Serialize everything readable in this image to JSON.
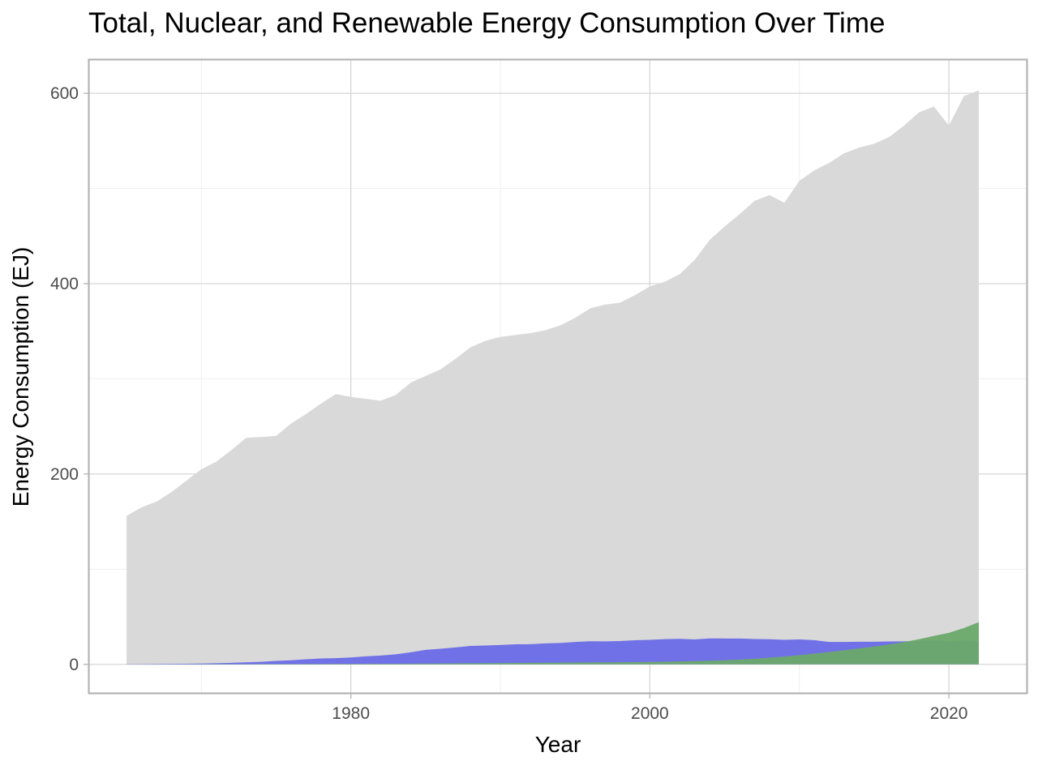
{
  "chart_data": {
    "type": "area",
    "title": "Total, Nuclear, and Renewable Energy Consumption Over Time",
    "xlabel": "Year",
    "ylabel": "Energy Consumption (EJ)",
    "xlim": [
      1962.5,
      2025.2
    ],
    "ylim": [
      -30,
      635
    ],
    "x_ticks": [
      1980,
      2000,
      2020
    ],
    "y_ticks": [
      0,
      200,
      400,
      600
    ],
    "grid": true,
    "legend": "none",
    "x": [
      1965,
      1966,
      1967,
      1968,
      1969,
      1970,
      1971,
      1972,
      1973,
      1974,
      1975,
      1976,
      1977,
      1978,
      1979,
      1980,
      1981,
      1982,
      1983,
      1984,
      1985,
      1986,
      1987,
      1988,
      1989,
      1990,
      1991,
      1992,
      1993,
      1994,
      1995,
      1996,
      1997,
      1998,
      1999,
      2000,
      2001,
      2002,
      2003,
      2004,
      2005,
      2006,
      2007,
      2008,
      2009,
      2010,
      2011,
      2012,
      2013,
      2014,
      2015,
      2016,
      2017,
      2018,
      2019,
      2020,
      2021,
      2022
    ],
    "series": [
      {
        "color": "#d9d9d9",
        "values": [
          156,
          165,
          171,
          181,
          193,
          205,
          213,
          225,
          238,
          239,
          240,
          253,
          263,
          274,
          284,
          281,
          279,
          277,
          283,
          296,
          303,
          310,
          321,
          333,
          340,
          344,
          346,
          348,
          351,
          356,
          364,
          374,
          378,
          380,
          388,
          397,
          402,
          410,
          425,
          446,
          460,
          473,
          487,
          493,
          485,
          508,
          519,
          527,
          537,
          543,
          547,
          554,
          566,
          580,
          586,
          566,
          597,
          603
        ]
      },
      {
        "color": "#6b6be8",
        "values": [
          0.2,
          0.3,
          0.4,
          0.5,
          0.7,
          0.9,
          1.2,
          1.6,
          2.1,
          2.7,
          3.6,
          4.3,
          5.3,
          6.2,
          6.5,
          7.2,
          8.4,
          9.3,
          10.5,
          12.7,
          15.2,
          16.4,
          17.8,
          19.4,
          19.8,
          20.3,
          21.1,
          21.2,
          22,
          22.5,
          23.5,
          24.3,
          24.2,
          24.5,
          25.3,
          25.8,
          26.5,
          26.8,
          26.2,
          27.3,
          27.2,
          27.2,
          26.6,
          26.4,
          25.8,
          26.2,
          25.4,
          23.5,
          23.5,
          23.8,
          23.8,
          24.1,
          24.2,
          24.6,
          25.2,
          23.9,
          25.3,
          24.1
        ]
      },
      {
        "color": "#6aa96a",
        "values": [
          0.1,
          0.1,
          0.1,
          0.1,
          0.1,
          0.2,
          0.2,
          0.2,
          0.2,
          0.3,
          0.3,
          0.3,
          0.4,
          0.4,
          0.5,
          0.5,
          0.6,
          0.6,
          0.7,
          0.8,
          0.9,
          1,
          1.1,
          1.2,
          1.3,
          1.4,
          1.5,
          1.6,
          1.7,
          1.8,
          1.9,
          2,
          2.1,
          2.2,
          2.4,
          2.6,
          2.8,
          3.1,
          3.4,
          3.8,
          4.3,
          5,
          5.9,
          7,
          8.2,
          9.7,
          11.3,
          13,
          14.8,
          16.8,
          18.8,
          21,
          23.4,
          26.4,
          29.9,
          33.1,
          38.1,
          44.4
        ]
      }
    ]
  }
}
